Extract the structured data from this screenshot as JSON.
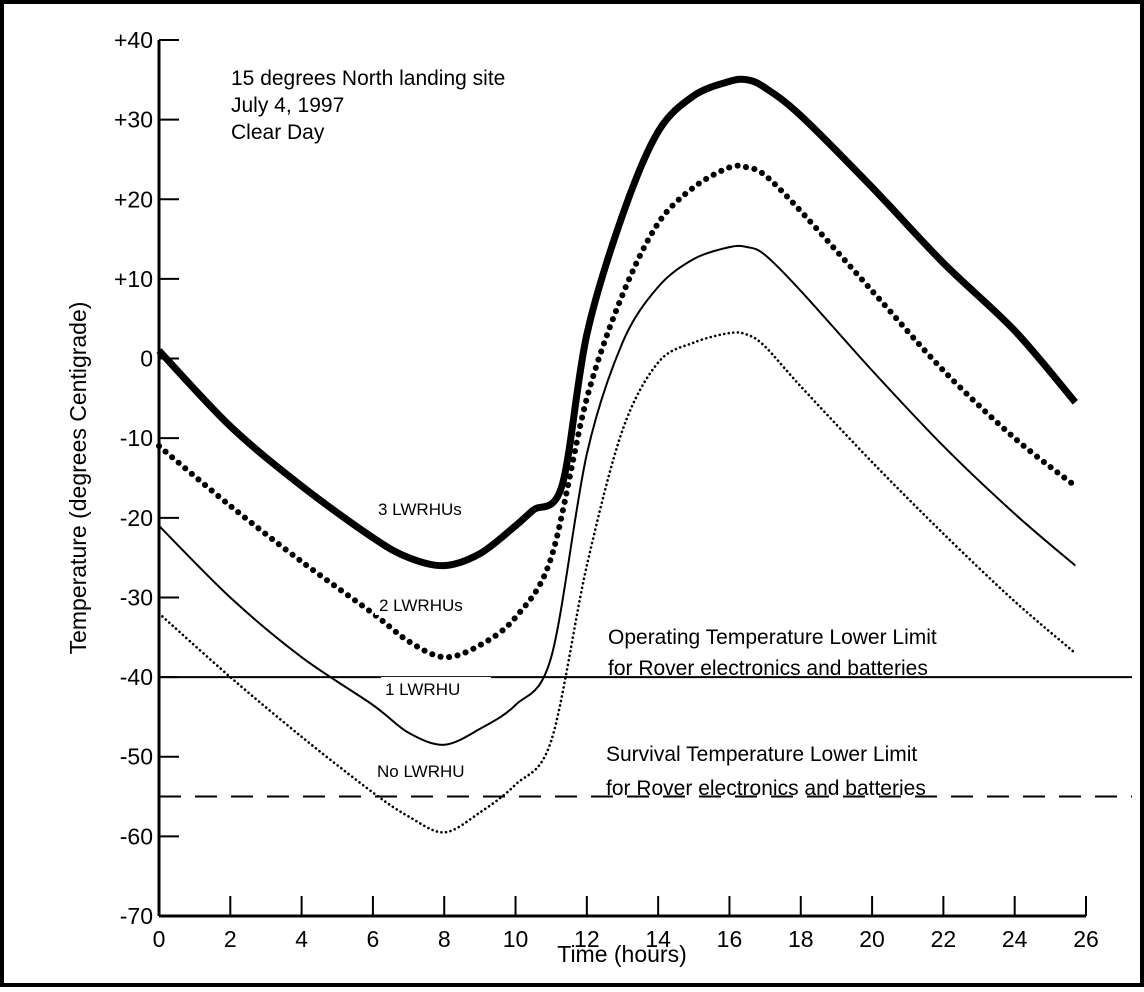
{
  "chart_data": {
    "type": "line",
    "title": "",
    "annotation": [
      "15 degrees North landing site",
      "July 4, 1997",
      "Clear Day"
    ],
    "xlabel": "Time (hours)",
    "ylabel": "Temperature (degrees Centigrade)",
    "xlim": [
      0,
      26
    ],
    "ylim": [
      -70,
      40
    ],
    "xticks": [
      "0",
      "2",
      "4",
      "6",
      "8",
      "10",
      "12",
      "14",
      "16",
      "18",
      "20",
      "22",
      "24",
      "26"
    ],
    "yticks": [
      "+40",
      "+30",
      "+20",
      "+10",
      "0",
      "-10",
      "-20",
      "-30",
      "-40",
      "-50",
      "-60",
      "-70"
    ],
    "xtick_values": [
      0,
      2,
      4,
      6,
      8,
      10,
      12,
      14,
      16,
      18,
      20,
      22,
      24,
      26
    ],
    "ytick_values": [
      40,
      30,
      20,
      10,
      0,
      -10,
      -20,
      -30,
      -40,
      -50,
      -60,
      -70
    ],
    "grid": false,
    "series": [
      {
        "name": "3 LWRHUs",
        "style": "thick-solid",
        "x": [
          0,
          2,
          4,
          6,
          7,
          8,
          9,
          10,
          10.5,
          11.3,
          12,
          13,
          14,
          15,
          16,
          16.5,
          17,
          18,
          20,
          22,
          24,
          25.7
        ],
        "y": [
          1,
          -8.5,
          -16,
          -22.5,
          -25,
          -26,
          -24.5,
          -21,
          -19,
          -16,
          3,
          18,
          28.5,
          33,
          34.8,
          35,
          34,
          30.5,
          21.5,
          12,
          3.5,
          -5.5
        ]
      },
      {
        "name": "2 LWRHUs",
        "style": "heavy-dotted",
        "x": [
          0,
          2,
          4,
          6,
          7,
          8,
          9,
          10,
          11,
          12,
          13,
          14,
          15,
          16,
          16.5,
          17,
          18,
          20,
          22,
          24,
          25.7
        ],
        "y": [
          -11,
          -18.5,
          -25.5,
          -32,
          -35.5,
          -37.5,
          -36,
          -32.5,
          -25,
          -5,
          8,
          17,
          21.5,
          24,
          24,
          23,
          18.5,
          8.5,
          -1.5,
          -10,
          -16
        ]
      },
      {
        "name": "1 LWRHU",
        "style": "thin-solid",
        "x": [
          0,
          2,
          4,
          6,
          7,
          8,
          9,
          10,
          11,
          12,
          13,
          14,
          15,
          16,
          16.5,
          17,
          18,
          20,
          22,
          24,
          25.7
        ],
        "y": [
          -21,
          -30,
          -37.5,
          -43.5,
          -47,
          -48.5,
          -46.5,
          -43.5,
          -37.5,
          -12,
          2,
          9,
          12.5,
          14,
          14,
          13,
          8.5,
          -1.5,
          -11,
          -19.5,
          -26
        ]
      },
      {
        "name": "No LWRHU",
        "style": "fine-dotted",
        "x": [
          0,
          2,
          4,
          6,
          7,
          8,
          9,
          10,
          11,
          12,
          13,
          14,
          15,
          16,
          16.5,
          17,
          18,
          20,
          22,
          24,
          25.7
        ],
        "y": [
          -32,
          -40,
          -47.5,
          -54.5,
          -57.5,
          -59.5,
          -57,
          -53.5,
          -48,
          -26,
          -9,
          -0.5,
          2,
          3.2,
          3,
          1.5,
          -3.5,
          -13,
          -22,
          -30.5,
          -37
        ]
      }
    ],
    "reference_lines": [
      {
        "y": -40,
        "style": "solid",
        "label": [
          "Operating Temperature Lower Limit",
          "for Rover electronics and batteries"
        ]
      },
      {
        "y": -55,
        "style": "dashed",
        "label": [
          "Survival Temperature Lower Limit",
          "for Rover electronics and batteries"
        ]
      }
    ]
  }
}
